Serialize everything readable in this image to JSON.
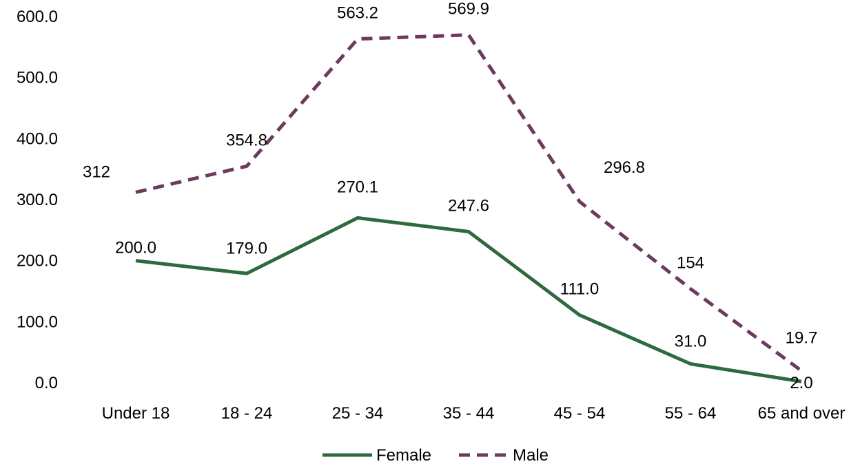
{
  "chart_data": {
    "type": "line",
    "title": "",
    "xlabel": "",
    "ylabel": "",
    "categories": [
      "Under 18",
      "18 - 24",
      "25 - 34",
      "35 - 44",
      "45 - 54",
      "55 - 64",
      "65 and over"
    ],
    "ylim": [
      0,
      600
    ],
    "y_ticks": [
      "0.0",
      "100.0",
      "200.0",
      "300.0",
      "400.0",
      "500.0",
      "600.0"
    ],
    "grid": false,
    "legend_position": "bottom",
    "series": [
      {
        "name": "Female",
        "color": "#2e6a3f",
        "style": "solid",
        "values": [
          200.0,
          179.0,
          270.1,
          247.6,
          111.0,
          31.0,
          2.0
        ],
        "labels": [
          "200.0",
          "179.0",
          "270.1",
          "247.6",
          "111.0",
          "31.0",
          "2.0"
        ]
      },
      {
        "name": "Male",
        "color": "#6b3a5c",
        "style": "dashed",
        "values": [
          312,
          354.8,
          563.2,
          569.9,
          296.8,
          154,
          19.7
        ],
        "labels": [
          "312",
          "354.8",
          "563.2",
          "569.9",
          "296.8",
          "154",
          "19.7"
        ]
      }
    ]
  }
}
